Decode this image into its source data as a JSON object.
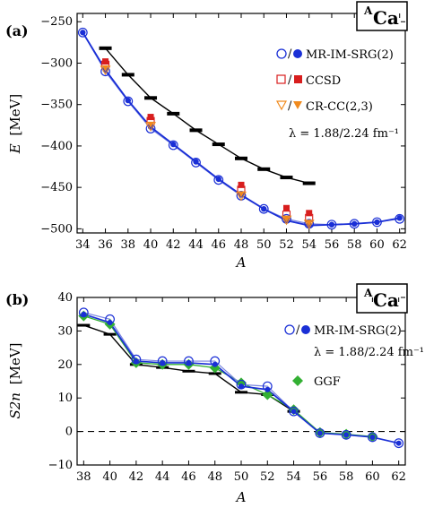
{
  "panels": [
    {
      "panel_label": "(a)",
      "isotope_label": {
        "sup": "A",
        "main": "Ca"
      },
      "ylabel_sym": "E",
      "ylabel_unit": "[MeV]",
      "xlabel": "A",
      "legend": {
        "entries": [
          {
            "prefix": "○/",
            "text": "MR-IM-SRG(2)"
          },
          {
            "prefix": "□/",
            "text": "CCSD"
          },
          {
            "prefix": "▽/",
            "text": "CR-CC(2,3)"
          }
        ],
        "note": "λ = 1.88/2.24 fm⁻¹"
      }
    },
    {
      "panel_label": "(b)",
      "isotope_label": {
        "sup": "A",
        "main": "Ca"
      },
      "ylabel_sym": "S2n",
      "ylabel_unit": "[MeV]",
      "xlabel": "A",
      "legend": {
        "entries": [
          {
            "prefix": "○/",
            "text": "MR-IM-SRG(2)"
          },
          {
            "prefix": "",
            "text": "GGF"
          }
        ],
        "note": "λ = 1.88/2.24 fm⁻¹"
      }
    }
  ],
  "chart_data": [
    {
      "type": "line",
      "xlabel": "A",
      "ylabel": "E [MeV]",
      "xlim": [
        33.5,
        62.5
      ],
      "ylim": [
        -505,
        -240
      ],
      "xticks": [
        34,
        36,
        38,
        40,
        42,
        44,
        46,
        48,
        50,
        52,
        54,
        56,
        58,
        60,
        62
      ],
      "yticks": [
        -500,
        -450,
        -400,
        -350,
        -300,
        -250
      ],
      "colors": {
        "imsrg": "#1a2fd6",
        "ccsd": "#d81e1e",
        "crcc": "#f08a1e",
        "exp": "#000000"
      },
      "series": [
        {
          "name": "MR-IM-SRG(2) open",
          "x": [
            34,
            36,
            38,
            40,
            42,
            44,
            46,
            48,
            50,
            52,
            54,
            56,
            58,
            60,
            62
          ],
          "values": [
            -263,
            -310,
            -346,
            -379,
            -399,
            -420,
            -441,
            -460,
            -476,
            -488,
            -494,
            -495,
            -494,
            -492,
            -488
          ]
        },
        {
          "name": "MR-IM-SRG(2) filled",
          "x": [
            34,
            36,
            38,
            40,
            42,
            44,
            46,
            48,
            50,
            52,
            54,
            56,
            58,
            60,
            62
          ],
          "values": [
            -263,
            -308,
            -345,
            -377,
            -398,
            -419,
            -440,
            -459,
            -476,
            -490,
            -496,
            -495,
            -494,
            -492,
            -487
          ]
        },
        {
          "name": "CCSD open",
          "x": [
            36,
            40,
            48,
            52,
            54
          ],
          "values": [
            -302,
            -370,
            -453,
            -483,
            -487
          ]
        },
        {
          "name": "CCSD filled",
          "x": [
            36,
            40,
            48,
            52,
            54
          ],
          "values": [
            -298,
            -365,
            -447,
            -475,
            -481
          ]
        },
        {
          "name": "CR-CC(2,3) open",
          "x": [
            36,
            40,
            48,
            52,
            54
          ],
          "values": [
            -308,
            -376,
            -460,
            -489,
            -494
          ]
        },
        {
          "name": "CR-CC(2,3) filled",
          "x": [
            36,
            40,
            48,
            52,
            54
          ],
          "values": [
            -306,
            -374,
            -458,
            -488,
            -493
          ]
        },
        {
          "name": "experiment",
          "x": [
            36,
            38,
            40,
            42,
            44,
            46,
            48,
            50,
            52,
            54
          ],
          "values": [
            -282,
            -314,
            -342,
            -361,
            -381,
            -398,
            -415,
            -428,
            -438,
            -445
          ]
        }
      ]
    },
    {
      "type": "line",
      "xlabel": "A",
      "ylabel": "S2n [MeV]",
      "xlim": [
        37.5,
        62.5
      ],
      "ylim": [
        -10,
        40
      ],
      "xticks": [
        38,
        40,
        42,
        44,
        46,
        48,
        50,
        52,
        54,
        56,
        58,
        60,
        62
      ],
      "yticks": [
        -10,
        0,
        10,
        20,
        30,
        40
      ],
      "colors": {
        "imsrg": "#1a2fd6",
        "ggf": "#33b033",
        "exp": "#000000"
      },
      "series": [
        {
          "name": "MR-IM-SRG(2) open",
          "x": [
            38,
            40,
            42,
            44,
            46,
            48,
            50,
            52,
            54,
            56,
            58,
            60,
            62
          ],
          "values": [
            35.5,
            33.5,
            21.5,
            21.0,
            21.0,
            21.0,
            14.0,
            13.5,
            6.0,
            -0.5,
            -1.0,
            -1.7,
            -3.5
          ]
        },
        {
          "name": "MR-IM-SRG(2) filled",
          "x": [
            38,
            40,
            42,
            44,
            46,
            48,
            50,
            52,
            54,
            56,
            58,
            60,
            62
          ],
          "values": [
            35.0,
            32.5,
            21.0,
            20.5,
            20.5,
            20.0,
            13.5,
            12.5,
            6.0,
            -0.5,
            -1.0,
            -1.7,
            -3.5
          ]
        },
        {
          "name": "GGF",
          "x": [
            38,
            40,
            42,
            44,
            46,
            48,
            50,
            52,
            54,
            56,
            58,
            60
          ],
          "values": [
            34.5,
            32.0,
            20.5,
            20.0,
            20.0,
            19.0,
            14.5,
            11.0,
            6.5,
            -0.3,
            -0.8,
            -1.5
          ]
        },
        {
          "name": "experiment",
          "x": [
            38,
            40,
            42,
            44,
            46,
            48,
            50,
            52,
            54
          ],
          "values": [
            31.7,
            29.0,
            20.0,
            19.1,
            18.0,
            17.3,
            11.7,
            11.0,
            6.0
          ]
        }
      ]
    }
  ]
}
